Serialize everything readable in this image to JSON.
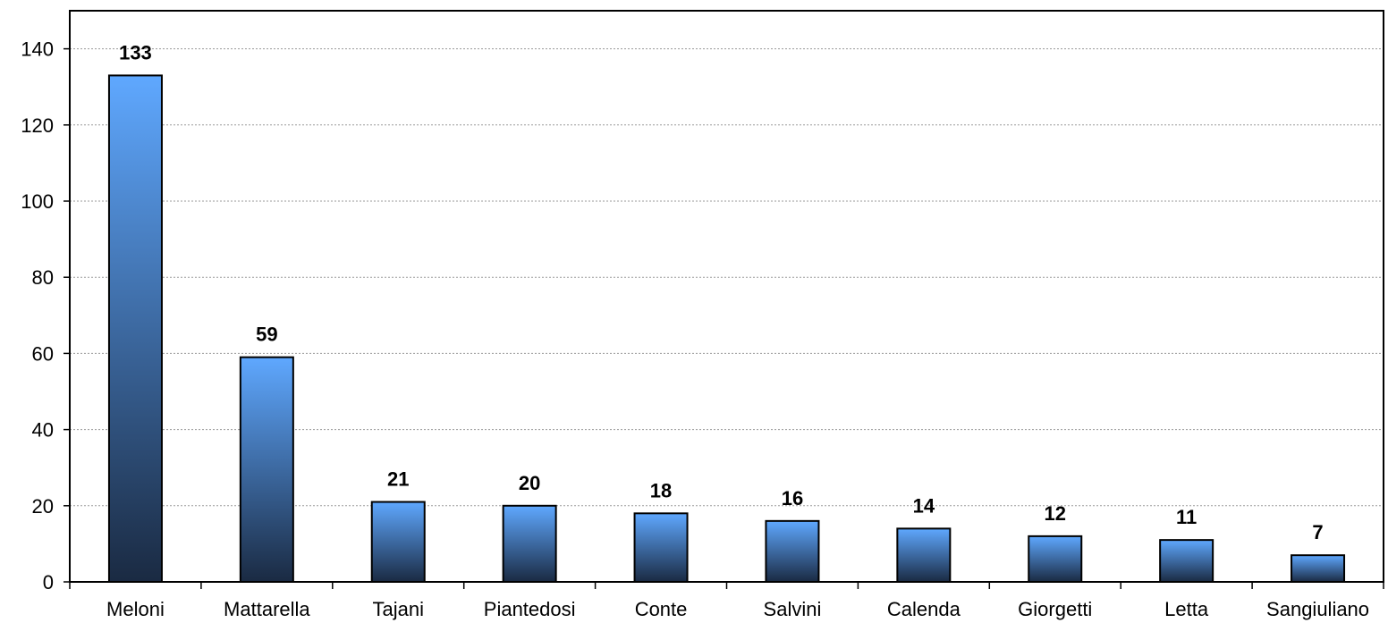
{
  "chart_data": {
    "type": "bar",
    "categories": [
      "Meloni",
      "Mattarella",
      "Tajani",
      "Piantedosi",
      "Conte",
      "Salvini",
      "Calenda",
      "Giorgetti",
      "Letta",
      "Sangiuliano"
    ],
    "values": [
      133,
      59,
      21,
      20,
      18,
      16,
      14,
      12,
      11,
      7
    ],
    "data_labels": [
      "133",
      "59",
      "21",
      "20",
      "18",
      "16",
      "14",
      "12",
      "11",
      "7"
    ],
    "title": "",
    "xlabel": "",
    "ylabel": "",
    "ylim": [
      0,
      150
    ],
    "yticks": [
      0,
      20,
      40,
      60,
      80,
      100,
      120,
      140
    ],
    "grid": "horizontal dotted",
    "legend": "none",
    "bar_gradient": {
      "top": "#5fa8ff",
      "bottom": "#1a2a42"
    },
    "bar_edge_color": "#000000"
  }
}
